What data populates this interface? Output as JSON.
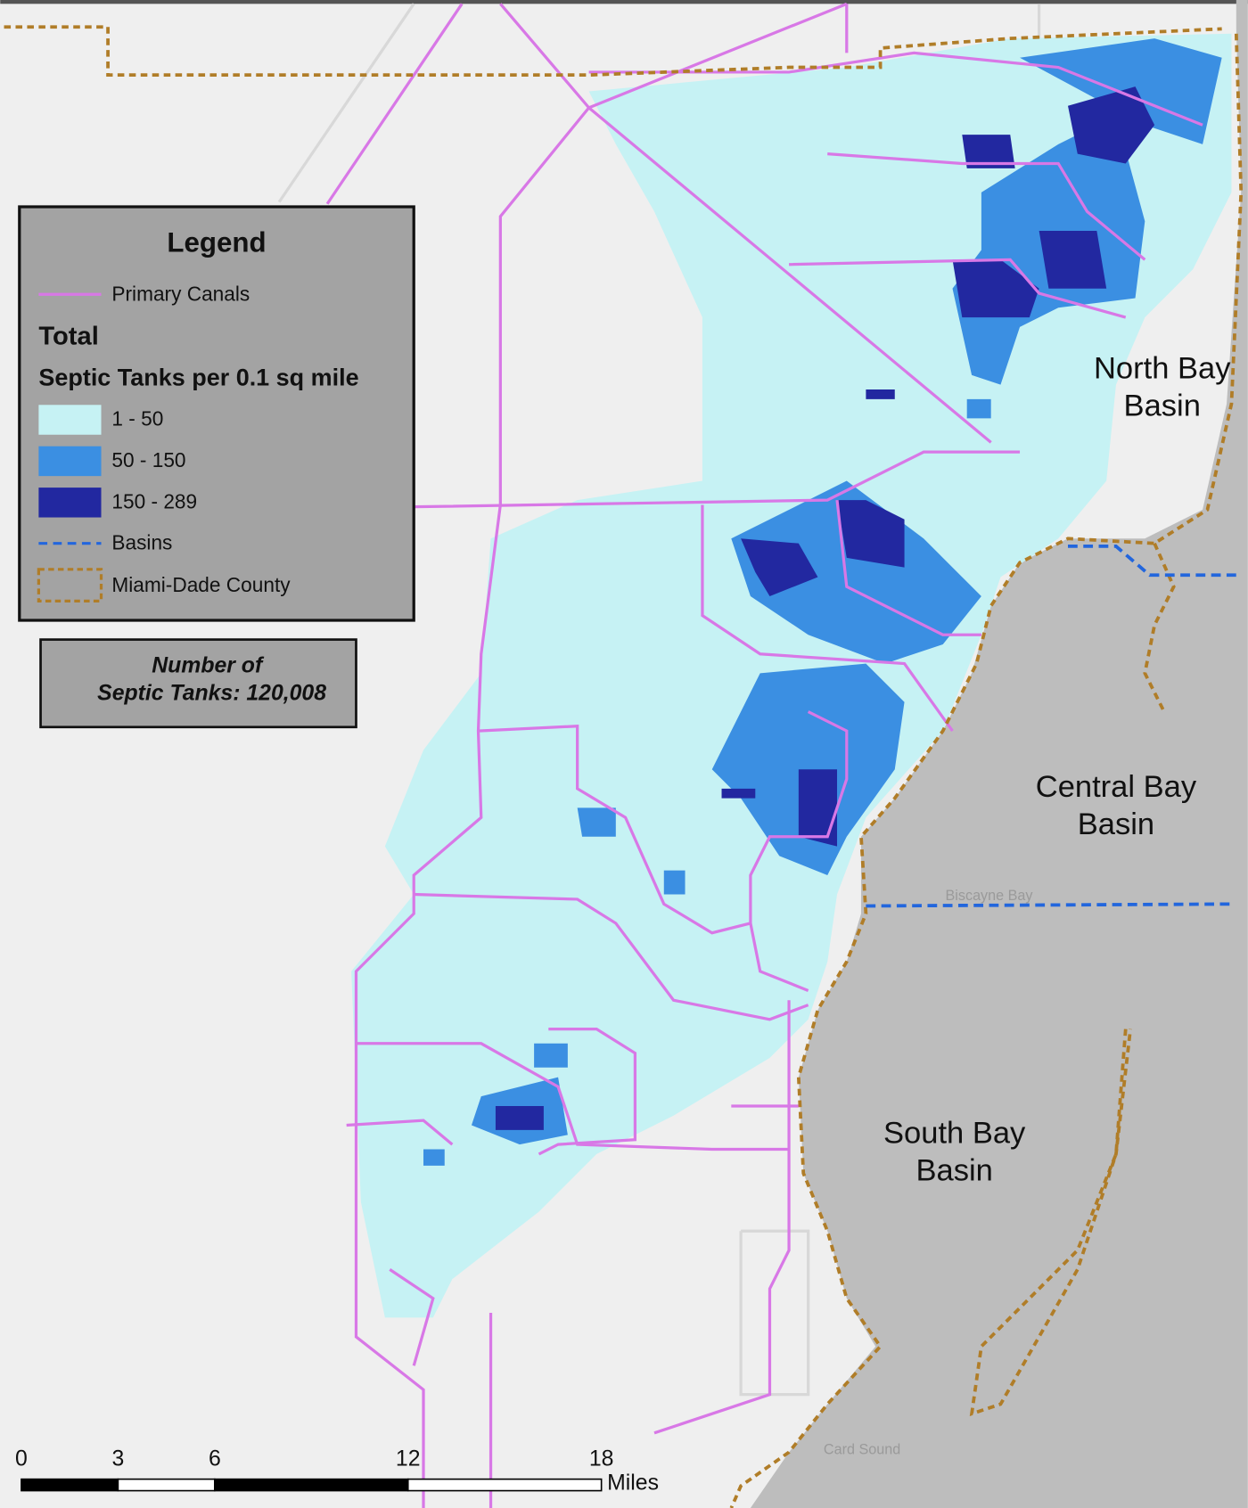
{
  "legend": {
    "title": "Legend",
    "canals": {
      "label": "Primary Canals",
      "color": "#d878e6"
    },
    "section_title": "Total",
    "subtitle": "Septic Tanks per 0.1 sq mile",
    "classes": [
      {
        "label": "1 - 50",
        "color": "#c6f2f4"
      },
      {
        "label": "50 - 150",
        "color": "#3b8fe2"
      },
      {
        "label": "150 - 289",
        "color": "#2228a0"
      }
    ],
    "basins": {
      "label": "Basins",
      "color": "#2266dd"
    },
    "county": {
      "label": "Miami-Dade County",
      "color": "#b07d28"
    }
  },
  "note": {
    "line1": "Number of",
    "line2": "Septic Tanks: 120,008"
  },
  "basin_labels": [
    {
      "line1": "North Bay",
      "line2": "Basin"
    },
    {
      "line1": "Central Bay",
      "line2": "Basin"
    },
    {
      "line1": "South Bay",
      "line2": "Basin"
    }
  ],
  "place_labels": [
    "Biscayne Bay",
    "Card Sound"
  ],
  "scale_bar": {
    "ticks": [
      0,
      3,
      6,
      12,
      18
    ],
    "unit": "Miles"
  }
}
